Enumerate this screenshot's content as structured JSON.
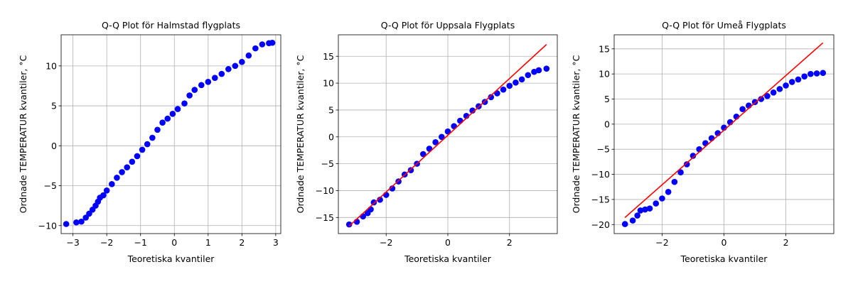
{
  "chart_data": [
    {
      "type": "scatter",
      "title": "Q-Q Plot för Halmstad flygplats",
      "xlabel": "Teoretiska kvantiler",
      "ylabel": "Ordnade TEMPERATUR kvantiler, °C",
      "xlim": [
        -3.35,
        3.15
      ],
      "ylim": [
        -11,
        13.9
      ],
      "xticks": [
        -3,
        -2,
        -1,
        0,
        1,
        2,
        3
      ],
      "yticks": [
        -10,
        -5,
        0,
        5,
        10
      ],
      "grid": true,
      "marker_color": "#0000ff",
      "line_color": "#ff0000",
      "quantiles": [
        [
          -3.2,
          -9.8
        ],
        [
          -2.9,
          -9.6
        ],
        [
          -2.75,
          -9.5
        ],
        [
          -2.62,
          -9.0
        ],
        [
          -2.52,
          -8.5
        ],
        [
          -2.42,
          -8.0
        ],
        [
          -2.33,
          -7.5
        ],
        [
          -2.26,
          -7.0
        ],
        [
          -2.2,
          -6.5
        ],
        [
          -2.1,
          -6.2
        ],
        [
          -2.0,
          -5.6
        ],
        [
          -1.85,
          -4.8
        ],
        [
          -1.7,
          -4.0
        ],
        [
          -1.55,
          -3.3
        ],
        [
          -1.4,
          -2.7
        ],
        [
          -1.25,
          -2.0
        ],
        [
          -1.1,
          -1.3
        ],
        [
          -0.95,
          -0.5
        ],
        [
          -0.8,
          0.2
        ],
        [
          -0.65,
          1.0
        ],
        [
          -0.5,
          2.0
        ],
        [
          -0.35,
          2.9
        ],
        [
          -0.2,
          3.4
        ],
        [
          -0.05,
          4.0
        ],
        [
          0.1,
          4.6
        ],
        [
          0.3,
          5.3
        ],
        [
          0.45,
          6.3
        ],
        [
          0.6,
          7.0
        ],
        [
          0.8,
          7.6
        ],
        [
          1.0,
          8.0
        ],
        [
          1.2,
          8.5
        ],
        [
          1.4,
          9.0
        ],
        [
          1.6,
          9.6
        ],
        [
          1.8,
          10.0
        ],
        [
          2.0,
          10.5
        ],
        [
          2.2,
          11.3
        ],
        [
          2.4,
          12.2
        ],
        [
          2.6,
          12.7
        ],
        [
          2.8,
          12.85
        ],
        [
          2.9,
          12.9
        ]
      ],
      "reference_line": null
    },
    {
      "type": "scatter",
      "title": "Q-Q Plot för Uppsala Flygplats",
      "xlabel": "Teoretiska kvantiler",
      "ylabel": "Ordnade TEMPERATUR kvantiler, °C",
      "xlim": [
        -3.55,
        3.55
      ],
      "ylim": [
        -18,
        19
      ],
      "xticks": [
        -2,
        0,
        2
      ],
      "yticks": [
        -15,
        -10,
        -5,
        0,
        5,
        10,
        15
      ],
      "grid": true,
      "marker_color": "#0000ff",
      "line_color": "#ff0000",
      "quantiles": [
        [
          -3.2,
          -16.3
        ],
        [
          -2.95,
          -15.8
        ],
        [
          -2.75,
          -14.8
        ],
        [
          -2.6,
          -14.2
        ],
        [
          -2.5,
          -13.5
        ],
        [
          -2.4,
          -12.2
        ],
        [
          -2.2,
          -11.7
        ],
        [
          -2.0,
          -10.8
        ],
        [
          -1.8,
          -9.6
        ],
        [
          -1.6,
          -8.3
        ],
        [
          -1.4,
          -7.0
        ],
        [
          -1.2,
          -6.2
        ],
        [
          -1.0,
          -5.0
        ],
        [
          -0.8,
          -3.2
        ],
        [
          -0.6,
          -2.2
        ],
        [
          -0.4,
          -1.0
        ],
        [
          -0.2,
          0.0
        ],
        [
          0.0,
          1.0
        ],
        [
          0.2,
          2.0
        ],
        [
          0.4,
          3.0
        ],
        [
          0.6,
          3.9
        ],
        [
          0.8,
          4.9
        ],
        [
          1.0,
          5.7
        ],
        [
          1.2,
          6.5
        ],
        [
          1.4,
          7.4
        ],
        [
          1.6,
          8.1
        ],
        [
          1.8,
          8.8
        ],
        [
          2.0,
          9.5
        ],
        [
          2.2,
          10.1
        ],
        [
          2.4,
          10.7
        ],
        [
          2.6,
          11.5
        ],
        [
          2.8,
          12.1
        ],
        [
          2.95,
          12.4
        ],
        [
          3.2,
          12.7
        ]
      ],
      "reference_line": {
        "x": [
          -3.2,
          3.2
        ],
        "y": [
          -16.6,
          17.2
        ]
      }
    },
    {
      "type": "scatter",
      "title": "Q-Q Plot för Umeå Flygplats",
      "xlabel": "Teoretiska kvantiler",
      "ylabel": "Ordnade TEMPERATUR kvantiler, °C",
      "xlim": [
        -3.55,
        3.55
      ],
      "ylim": [
        -21.8,
        17.8
      ],
      "xticks": [
        -2,
        0,
        2
      ],
      "yticks": [
        -20,
        -15,
        -10,
        -5,
        0,
        5,
        10,
        15
      ],
      "grid": true,
      "marker_color": "#0000ff",
      "line_color": "#ff0000",
      "quantiles": [
        [
          -3.2,
          -19.9
        ],
        [
          -2.95,
          -19.2
        ],
        [
          -2.8,
          -18.2
        ],
        [
          -2.7,
          -17.2
        ],
        [
          -2.55,
          -17.0
        ],
        [
          -2.4,
          -16.8
        ],
        [
          -2.2,
          -15.8
        ],
        [
          -2.0,
          -14.8
        ],
        [
          -1.8,
          -13.5
        ],
        [
          -1.6,
          -11.5
        ],
        [
          -1.4,
          -9.6
        ],
        [
          -1.2,
          -8.0
        ],
        [
          -1.0,
          -6.3
        ],
        [
          -0.8,
          -5.0
        ],
        [
          -0.6,
          -3.8
        ],
        [
          -0.4,
          -2.8
        ],
        [
          -0.2,
          -1.8
        ],
        [
          0.0,
          -0.7
        ],
        [
          0.2,
          0.4
        ],
        [
          0.4,
          1.5
        ],
        [
          0.6,
          3.0
        ],
        [
          0.8,
          3.7
        ],
        [
          1.0,
          4.4
        ],
        [
          1.2,
          5.0
        ],
        [
          1.4,
          5.6
        ],
        [
          1.6,
          6.3
        ],
        [
          1.8,
          7.0
        ],
        [
          2.0,
          7.7
        ],
        [
          2.2,
          8.4
        ],
        [
          2.4,
          8.9
        ],
        [
          2.6,
          9.5
        ],
        [
          2.8,
          10.0
        ],
        [
          3.0,
          10.1
        ],
        [
          3.2,
          10.2
        ]
      ],
      "reference_line": {
        "x": [
          -3.2,
          3.2
        ],
        "y": [
          -18.6,
          16.2
        ]
      }
    }
  ]
}
